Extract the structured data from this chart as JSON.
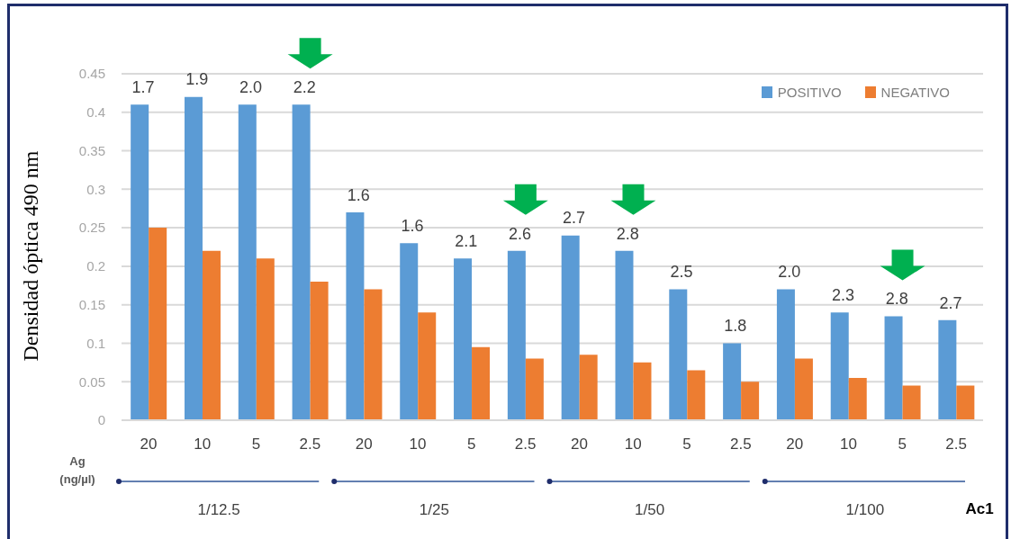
{
  "chart_data": {
    "type": "bar",
    "categories": [
      "20",
      "10",
      "5",
      "2.5",
      "20",
      "10",
      "5",
      "2.5",
      "20",
      "10",
      "5",
      "2.5",
      "20",
      "10",
      "5",
      "2.5"
    ],
    "xlabel": "Ag (ng/µl)",
    "ylabel": "Densidad óptica 490 nm",
    "annotations": [
      "1/12.5",
      "1/25",
      "1/50",
      "1/100",
      "Ac1",
      "1.7",
      "1.9",
      "2.0",
      "2.2",
      "1.6",
      "1.6",
      "2.1",
      "2.6",
      "2.7",
      "2.8",
      "2.5",
      "1.8",
      "2.0",
      "2.3",
      "2.8",
      "2.7"
    ],
    "series": [
      {
        "name": "POSITIVO",
        "color": "#5b9bd5",
        "values": [
          0.41,
          0.42,
          0.41,
          0.41,
          0.27,
          0.23,
          0.21,
          0.22,
          0.24,
          0.22,
          0.17,
          0.1,
          0.17,
          0.14,
          0.135,
          0.13
        ]
      },
      {
        "name": "NEGATIVO",
        "color": "#ed7d31",
        "values": [
          0.25,
          0.22,
          0.21,
          0.18,
          0.17,
          0.14,
          0.095,
          0.08,
          0.085,
          0.075,
          0.065,
          0.05,
          0.08,
          0.055,
          0.045,
          0.045
        ]
      }
    ],
    "ylim": [
      0,
      0.45
    ],
    "yticks": [
      0,
      0.05,
      0.1,
      0.15,
      0.2,
      0.25,
      0.3,
      0.35,
      0.4,
      0.45
    ],
    "grid": "y",
    "legend": "top right"
  }
}
